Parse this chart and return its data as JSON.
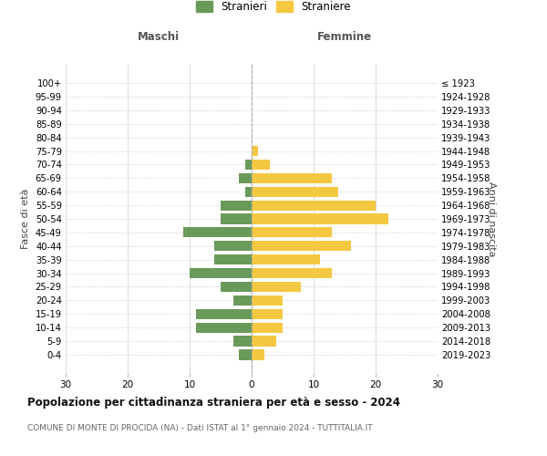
{
  "age_groups": [
    "100+",
    "95-99",
    "90-94",
    "85-89",
    "80-84",
    "75-79",
    "70-74",
    "65-69",
    "60-64",
    "55-59",
    "50-54",
    "45-49",
    "40-44",
    "35-39",
    "30-34",
    "25-29",
    "20-24",
    "15-19",
    "10-14",
    "5-9",
    "0-4"
  ],
  "birth_years": [
    "≤ 1923",
    "1924-1928",
    "1929-1933",
    "1934-1938",
    "1939-1943",
    "1944-1948",
    "1949-1953",
    "1954-1958",
    "1959-1963",
    "1964-1968",
    "1969-1973",
    "1974-1978",
    "1979-1983",
    "1984-1988",
    "1989-1993",
    "1994-1998",
    "1999-2003",
    "2004-2008",
    "2009-2013",
    "2014-2018",
    "2019-2023"
  ],
  "maschi": [
    0,
    0,
    0,
    0,
    0,
    0,
    1,
    2,
    1,
    5,
    5,
    11,
    6,
    6,
    10,
    5,
    3,
    9,
    9,
    3,
    2
  ],
  "femmine": [
    0,
    0,
    0,
    0,
    0,
    1,
    3,
    13,
    14,
    20,
    22,
    13,
    16,
    11,
    13,
    8,
    5,
    5,
    5,
    4,
    2
  ],
  "color_maschi": "#6a9a5a",
  "color_femmine": "#f5c842",
  "title": "Popolazione per cittadinanza straniera per età e sesso - 2024",
  "subtitle": "COMUNE DI MONTE DI PROCIDA (NA) - Dati ISTAT al 1° gennaio 2024 - TUTTITALIA.IT",
  "xlabel_left": "Maschi",
  "xlabel_right": "Femmine",
  "ylabel_left": "Fasce di età",
  "ylabel_right": "Anni di nascita",
  "legend_maschi": "Stranieri",
  "legend_femmine": "Straniere",
  "xlim": 30,
  "bg_color": "#ffffff",
  "grid_color": "#cccccc"
}
